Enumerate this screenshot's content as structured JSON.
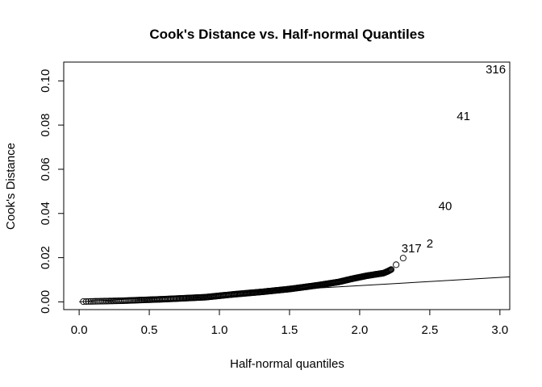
{
  "chart_data": {
    "type": "scatter",
    "title": "Cook's Distance vs. Half-normal Quantiles",
    "xlabel": "Half-normal quantiles",
    "ylabel": "Cook's Distance",
    "xlim": [
      -0.11,
      3.07
    ],
    "ylim": [
      -0.0035,
      0.1085
    ],
    "x_ticks": [
      0.0,
      0.5,
      1.0,
      1.5,
      2.0,
      2.5,
      3.0
    ],
    "x_tick_labels": [
      "0.0",
      "0.5",
      "1.0",
      "1.5",
      "2.0",
      "2.5",
      "3.0"
    ],
    "y_ticks": [
      0.0,
      0.02,
      0.04,
      0.06,
      0.08,
      0.1
    ],
    "y_tick_labels": [
      "0.00",
      "0.02",
      "0.04",
      "0.06",
      "0.08",
      "0.10"
    ],
    "grid": false,
    "reference_line": {
      "from": [
        0,
        0
      ],
      "to": [
        3.07,
        0.0113
      ]
    },
    "curve_anchors": [
      [
        0.0,
        0.0001
      ],
      [
        0.3,
        0.0005
      ],
      [
        0.6,
        0.0012
      ],
      [
        0.9,
        0.0021
      ],
      [
        1.1,
        0.0034
      ],
      [
        1.3,
        0.0045
      ],
      [
        1.5,
        0.0058
      ],
      [
        1.7,
        0.0075
      ],
      [
        1.85,
        0.009
      ],
      [
        1.95,
        0.0105
      ],
      [
        2.05,
        0.0118
      ],
      [
        2.12,
        0.0125
      ],
      [
        2.17,
        0.013
      ],
      [
        2.2,
        0.0138
      ],
      [
        2.23,
        0.0148
      ]
    ],
    "tail_points": [
      [
        2.26,
        0.0168
      ],
      [
        2.31,
        0.0198
      ]
    ],
    "labeled_points": [
      {
        "label": "317",
        "x": 2.37,
        "y": 0.0243
      },
      {
        "label": "2",
        "x": 2.5,
        "y": 0.0265
      },
      {
        "label": "40",
        "x": 2.61,
        "y": 0.0433
      },
      {
        "label": "41",
        "x": 2.74,
        "y": 0.084
      },
      {
        "label": "316",
        "x": 2.97,
        "y": 0.1052
      }
    ],
    "point_count": 316
  }
}
